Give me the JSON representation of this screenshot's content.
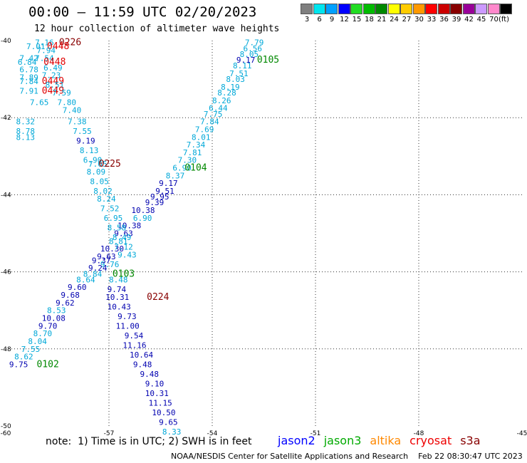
{
  "header": {
    "title": "00:00 – 11:59 UTC 02/20/2023",
    "subtitle": "12 hour collection of altimeter wave heights"
  },
  "legend": {
    "unit": "(ft)",
    "swatches": [
      {
        "color": "#7f7f7f",
        "label": "3"
      },
      {
        "color": "#00e5ee",
        "label": "6"
      },
      {
        "color": "#00a0ff",
        "label": "9"
      },
      {
        "color": "#0000ff",
        "label": "12"
      },
      {
        "color": "#22dd22",
        "label": "15"
      },
      {
        "color": "#00bb00",
        "label": "18"
      },
      {
        "color": "#008800",
        "label": "21"
      },
      {
        "color": "#ffff00",
        "label": "24"
      },
      {
        "color": "#ffcc00",
        "label": "27"
      },
      {
        "color": "#ff9900",
        "label": "30"
      },
      {
        "color": "#ff0000",
        "label": "33"
      },
      {
        "color": "#cc0000",
        "label": "36"
      },
      {
        "color": "#880000",
        "label": "39"
      },
      {
        "color": "#990099",
        "label": "42"
      },
      {
        "color": "#cc99ff",
        "label": "45"
      },
      {
        "color": "#ff88cc",
        "label": "70"
      },
      {
        "color": "#000000",
        "label": ""
      }
    ]
  },
  "map": {
    "lon_range": [
      -60,
      -45
    ],
    "lat_range": [
      -50,
      -40
    ],
    "lon_ticks": [
      {
        "value": -60,
        "label": "-60"
      },
      {
        "value": -57,
        "label": "-57"
      },
      {
        "value": -54,
        "label": "-54"
      },
      {
        "value": -51,
        "label": "-51"
      },
      {
        "value": -48,
        "label": "-48"
      },
      {
        "value": -45,
        "label": "-45"
      }
    ],
    "lat_ticks": [
      {
        "value": -40,
        "label": "-40"
      },
      {
        "value": -42,
        "label": "-42"
      },
      {
        "value": -44,
        "label": "-44"
      },
      {
        "value": -46,
        "label": "-46"
      },
      {
        "value": -48,
        "label": "-48"
      },
      {
        "value": -50,
        "label": "-50"
      }
    ],
    "colors": {
      "cyan": "#00a8d8",
      "blue": "#0000b0",
      "darkred": "#880000",
      "red": "#e00000",
      "green": "#008800"
    },
    "labels": [
      {
        "text": "7.79",
        "lon": -53.05,
        "lat": -40.05,
        "c": "cyan"
      },
      {
        "text": "6.56",
        "lon": -53.1,
        "lat": -40.2,
        "c": "cyan"
      },
      {
        "text": "8.05",
        "lon": -53.2,
        "lat": -40.35,
        "c": "cyan"
      },
      {
        "text": "9.17",
        "lon": -53.3,
        "lat": -40.5,
        "c": "blue"
      },
      {
        "text": "0105",
        "lon": -52.7,
        "lat": -40.5,
        "c": "green",
        "pass": true
      },
      {
        "text": "8.11",
        "lon": -53.4,
        "lat": -40.65,
        "c": "cyan"
      },
      {
        "text": "7.51",
        "lon": -53.5,
        "lat": -40.85,
        "c": "cyan"
      },
      {
        "text": "8.03",
        "lon": -53.6,
        "lat": -41.0,
        "c": "cyan"
      },
      {
        "text": "8.19",
        "lon": -53.75,
        "lat": -41.2,
        "c": "cyan"
      },
      {
        "text": "8.28",
        "lon": -53.85,
        "lat": -41.35,
        "c": "cyan"
      },
      {
        "text": "8.26",
        "lon": -54.0,
        "lat": -41.55,
        "c": "cyan"
      },
      {
        "text": "6.44",
        "lon": -54.1,
        "lat": -41.75,
        "c": "cyan"
      },
      {
        "text": "7.75",
        "lon": -54.25,
        "lat": -41.9,
        "c": "cyan"
      },
      {
        "text": "7.84",
        "lon": -54.35,
        "lat": -42.1,
        "c": "cyan"
      },
      {
        "text": "7.69",
        "lon": -54.5,
        "lat": -42.3,
        "c": "cyan"
      },
      {
        "text": "8.01",
        "lon": -54.6,
        "lat": -42.5,
        "c": "cyan"
      },
      {
        "text": "7.34",
        "lon": -54.75,
        "lat": -42.7,
        "c": "cyan"
      },
      {
        "text": "7.81",
        "lon": -54.85,
        "lat": -42.9,
        "c": "cyan"
      },
      {
        "text": "7.30",
        "lon": -55.0,
        "lat": -43.1,
        "c": "cyan"
      },
      {
        "text": "6.90",
        "lon": -55.15,
        "lat": -43.3,
        "c": "cyan"
      },
      {
        "text": "0104",
        "lon": -54.8,
        "lat": -43.3,
        "c": "green",
        "pass": true
      },
      {
        "text": "8.37",
        "lon": -55.35,
        "lat": -43.5,
        "c": "cyan"
      },
      {
        "text": "9.17",
        "lon": -55.55,
        "lat": -43.7,
        "c": "blue"
      },
      {
        "text": "9.51",
        "lon": -55.65,
        "lat": -43.9,
        "c": "blue"
      },
      {
        "text": "9.95",
        "lon": -55.8,
        "lat": -44.05,
        "c": "blue"
      },
      {
        "text": "9.39",
        "lon": -55.95,
        "lat": -44.2,
        "c": "blue"
      },
      {
        "text": "10.38",
        "lon": -56.35,
        "lat": -44.4,
        "c": "blue"
      },
      {
        "text": "6.90",
        "lon": -56.3,
        "lat": -44.6,
        "c": "cyan"
      },
      {
        "text": "10.38",
        "lon": -56.75,
        "lat": -44.8,
        "c": "blue"
      },
      {
        "text": "9.63",
        "lon": -56.85,
        "lat": -45.0,
        "c": "blue"
      },
      {
        "text": "8.81",
        "lon": -57.0,
        "lat": -45.2,
        "c": "cyan"
      },
      {
        "text": "10.30",
        "lon": -57.25,
        "lat": -45.4,
        "c": "blue"
      },
      {
        "text": "9.63",
        "lon": -57.35,
        "lat": -45.6,
        "c": "blue"
      },
      {
        "text": "9.76",
        "lon": -57.25,
        "lat": -45.8,
        "c": "cyan"
      },
      {
        "text": "0103",
        "lon": -56.9,
        "lat": -46.05,
        "c": "green",
        "pass": true
      },
      {
        "text": "8.48",
        "lon": -57.0,
        "lat": -46.2,
        "c": "cyan"
      },
      {
        "text": "9.74",
        "lon": -57.05,
        "lat": -46.45,
        "c": "blue"
      },
      {
        "text": "10.31",
        "lon": -57.1,
        "lat": -46.65,
        "c": "blue"
      },
      {
        "text": "0224",
        "lon": -55.9,
        "lat": -46.65,
        "c": "darkred",
        "pass": true
      },
      {
        "text": "10.43",
        "lon": -57.05,
        "lat": -46.9,
        "c": "blue"
      },
      {
        "text": "9.73",
        "lon": -56.75,
        "lat": -47.15,
        "c": "blue"
      },
      {
        "text": "11.00",
        "lon": -56.8,
        "lat": -47.4,
        "c": "blue"
      },
      {
        "text": "9.54",
        "lon": -56.55,
        "lat": -47.65,
        "c": "blue"
      },
      {
        "text": "11.16",
        "lon": -56.6,
        "lat": -47.9,
        "c": "blue"
      },
      {
        "text": "10.64",
        "lon": -56.4,
        "lat": -48.15,
        "c": "blue"
      },
      {
        "text": "9.48",
        "lon": -56.3,
        "lat": -48.4,
        "c": "blue"
      },
      {
        "text": "9.48",
        "lon": -56.1,
        "lat": -48.65,
        "c": "blue"
      },
      {
        "text": "9.10",
        "lon": -55.95,
        "lat": -48.9,
        "c": "blue"
      },
      {
        "text": "10.31",
        "lon": -55.95,
        "lat": -49.15,
        "c": "blue"
      },
      {
        "text": "11.15",
        "lon": -55.85,
        "lat": -49.4,
        "c": "blue"
      },
      {
        "text": "10.50",
        "lon": -55.75,
        "lat": -49.65,
        "c": "blue"
      },
      {
        "text": "9.65",
        "lon": -55.55,
        "lat": -49.9,
        "c": "blue"
      },
      {
        "text": "8.33",
        "lon": -55.45,
        "lat": -50.15,
        "c": "cyan"
      },
      {
        "text": "7.16",
        "lon": -59.15,
        "lat": -40.05,
        "c": "cyan"
      },
      {
        "text": "0226",
        "lon": -58.45,
        "lat": -40.05,
        "c": "darkred",
        "pass": true
      },
      {
        "text": "7.01",
        "lon": -59.4,
        "lat": -40.15,
        "c": "cyan"
      },
      {
        "text": "0448",
        "lon": -58.8,
        "lat": -40.15,
        "c": "red",
        "pass": true
      },
      {
        "text": "7.94",
        "lon": -59.1,
        "lat": -40.25,
        "c": "cyan"
      },
      {
        "text": "7.42",
        "lon": -59.6,
        "lat": -40.45,
        "c": "cyan"
      },
      {
        "text": "7.54",
        "lon": -59.15,
        "lat": -40.45,
        "c": "cyan"
      },
      {
        "text": "6.84",
        "lon": -59.65,
        "lat": -40.55,
        "c": "cyan"
      },
      {
        "text": "0448",
        "lon": -58.9,
        "lat": -40.55,
        "c": "red",
        "pass": true
      },
      {
        "text": "6.49",
        "lon": -58.9,
        "lat": -40.7,
        "c": "cyan"
      },
      {
        "text": "6.78",
        "lon": -59.6,
        "lat": -40.75,
        "c": "cyan"
      },
      {
        "text": "7.23",
        "lon": -58.95,
        "lat": -40.9,
        "c": "cyan"
      },
      {
        "text": "7.89",
        "lon": -59.6,
        "lat": -40.95,
        "c": "cyan"
      },
      {
        "text": "7.84",
        "lon": -59.6,
        "lat": -41.05,
        "c": "cyan"
      },
      {
        "text": "0449",
        "lon": -58.95,
        "lat": -41.05,
        "c": "red",
        "pass": true
      },
      {
        "text": "8.51",
        "lon": -58.85,
        "lat": -41.15,
        "c": "cyan"
      },
      {
        "text": "7.91",
        "lon": -59.6,
        "lat": -41.3,
        "c": "cyan"
      },
      {
        "text": "0449",
        "lon": -58.95,
        "lat": -41.3,
        "c": "red",
        "pass": true
      },
      {
        "text": "7.59",
        "lon": -58.65,
        "lat": -41.35,
        "c": "cyan"
      },
      {
        "text": "7.65",
        "lon": -59.3,
        "lat": -41.6,
        "c": "cyan"
      },
      {
        "text": "7.80",
        "lon": -58.5,
        "lat": -41.6,
        "c": "cyan"
      },
      {
        "text": "7.40",
        "lon": -58.35,
        "lat": -41.8,
        "c": "cyan"
      },
      {
        "text": "8.32",
        "lon": -59.7,
        "lat": -42.1,
        "c": "cyan"
      },
      {
        "text": "7.38",
        "lon": -58.2,
        "lat": -42.1,
        "c": "cyan"
      },
      {
        "text": "8.78",
        "lon": -59.7,
        "lat": -42.35,
        "c": "cyan"
      },
      {
        "text": "8.13",
        "lon": -59.7,
        "lat": -42.5,
        "c": "cyan"
      },
      {
        "text": "7.55",
        "lon": -58.05,
        "lat": -42.35,
        "c": "cyan"
      },
      {
        "text": "9.19",
        "lon": -57.95,
        "lat": -42.6,
        "c": "blue"
      },
      {
        "text": "8.13",
        "lon": -57.85,
        "lat": -42.85,
        "c": "cyan"
      },
      {
        "text": "6.90",
        "lon": -57.75,
        "lat": -43.1,
        "c": "cyan"
      },
      {
        "text": "7.65",
        "lon": -57.6,
        "lat": -43.2,
        "c": "cyan"
      },
      {
        "text": "0225",
        "lon": -57.3,
        "lat": -43.2,
        "c": "darkred",
        "pass": true
      },
      {
        "text": "8.09",
        "lon": -57.65,
        "lat": -43.4,
        "c": "cyan"
      },
      {
        "text": "8.05",
        "lon": -57.55,
        "lat": -43.65,
        "c": "cyan"
      },
      {
        "text": "8.02",
        "lon": -57.45,
        "lat": -43.9,
        "c": "cyan"
      },
      {
        "text": "8.24",
        "lon": -57.35,
        "lat": -44.1,
        "c": "cyan"
      },
      {
        "text": "7.52",
        "lon": -57.25,
        "lat": -44.35,
        "c": "cyan"
      },
      {
        "text": "6.95",
        "lon": -57.15,
        "lat": -44.6,
        "c": "cyan"
      },
      {
        "text": "8.58",
        "lon": -57.05,
        "lat": -44.85,
        "c": "cyan"
      },
      {
        "text": "8.49",
        "lon": -56.9,
        "lat": -45.1,
        "c": "cyan"
      },
      {
        "text": "7.12",
        "lon": -56.85,
        "lat": -45.35,
        "c": "cyan"
      },
      {
        "text": "9.43",
        "lon": -56.75,
        "lat": -45.55,
        "c": "cyan"
      },
      {
        "text": "9.37",
        "lon": -57.5,
        "lat": -45.7,
        "c": "blue"
      },
      {
        "text": "9.24",
        "lon": -57.6,
        "lat": -45.9,
        "c": "blue"
      },
      {
        "text": "8.84",
        "lon": -57.75,
        "lat": -46.05,
        "c": "cyan"
      },
      {
        "text": "8.64",
        "lon": -57.95,
        "lat": -46.2,
        "c": "cyan"
      },
      {
        "text": "9.60",
        "lon": -58.2,
        "lat": -46.4,
        "c": "blue"
      },
      {
        "text": "9.68",
        "lon": -58.4,
        "lat": -46.6,
        "c": "blue"
      },
      {
        "text": "9.62",
        "lon": -58.55,
        "lat": -46.8,
        "c": "blue"
      },
      {
        "text": "8.53",
        "lon": -58.8,
        "lat": -47.0,
        "c": "cyan"
      },
      {
        "text": "10.08",
        "lon": -58.95,
        "lat": -47.2,
        "c": "blue"
      },
      {
        "text": "9.70",
        "lon": -59.05,
        "lat": -47.4,
        "c": "blue"
      },
      {
        "text": "8.70",
        "lon": -59.2,
        "lat": -47.6,
        "c": "cyan"
      },
      {
        "text": "8.04",
        "lon": -59.35,
        "lat": -47.8,
        "c": "cyan"
      },
      {
        "text": "7.55",
        "lon": -59.55,
        "lat": -48.0,
        "c": "cyan"
      },
      {
        "text": "8.62",
        "lon": -59.75,
        "lat": -48.2,
        "c": "cyan"
      },
      {
        "text": "9.75",
        "lon": -59.9,
        "lat": -48.4,
        "c": "blue"
      },
      {
        "text": "0102",
        "lon": -59.1,
        "lat": -48.4,
        "c": "green",
        "pass": true
      }
    ]
  },
  "footer": {
    "note": "note:  1) Time is in UTC; 2) SWH is in feet",
    "satellites": [
      {
        "name": "jason2",
        "color": "#0000ff"
      },
      {
        "name": "jason3",
        "color": "#00aa00"
      },
      {
        "name": "altika",
        "color": "#ff8800"
      },
      {
        "name": "cryosat",
        "color": "#ee0000"
      },
      {
        "name": "s3a",
        "color": "#880000"
      }
    ],
    "credit": "NOAA/NESDIS Center for Satellite Applications and Research    Feb 22 08:30:47 UTC 2023"
  }
}
